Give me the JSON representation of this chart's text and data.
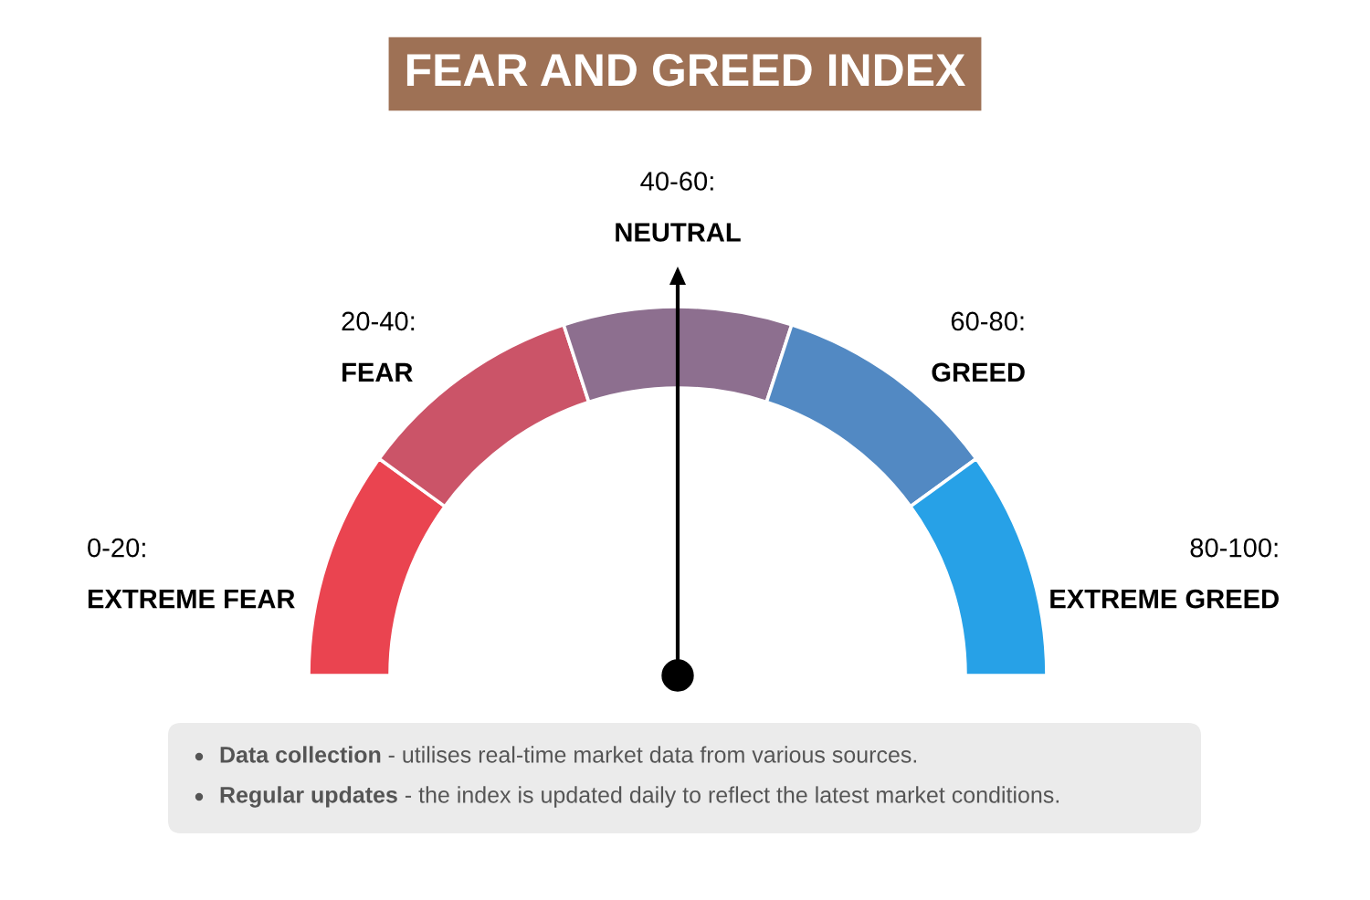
{
  "chart_data": {
    "type": "donut",
    "title": "FEAR AND GREED INDEX",
    "categories": [
      "0-20:\nEXTREME FEAR",
      "20-40:\nFEAR",
      "40-60:\nNEUTRAL",
      "60-80:\nGREED",
      "80-100:\nEXTREME GREED"
    ],
    "values": [
      20,
      20,
      20,
      20,
      20
    ],
    "colors": [
      "#ea4450",
      "#cb5468",
      "#8d6f8f",
      "#5289c3",
      "#27a1e7"
    ],
    "needle": "40-60:\nNEUTRAL",
    "annotations": [
      "Data collection - utilises real-time market data from various sources.",
      "Regular updates - the index is updated daily to reflect the latest market conditions."
    ]
  }
}
